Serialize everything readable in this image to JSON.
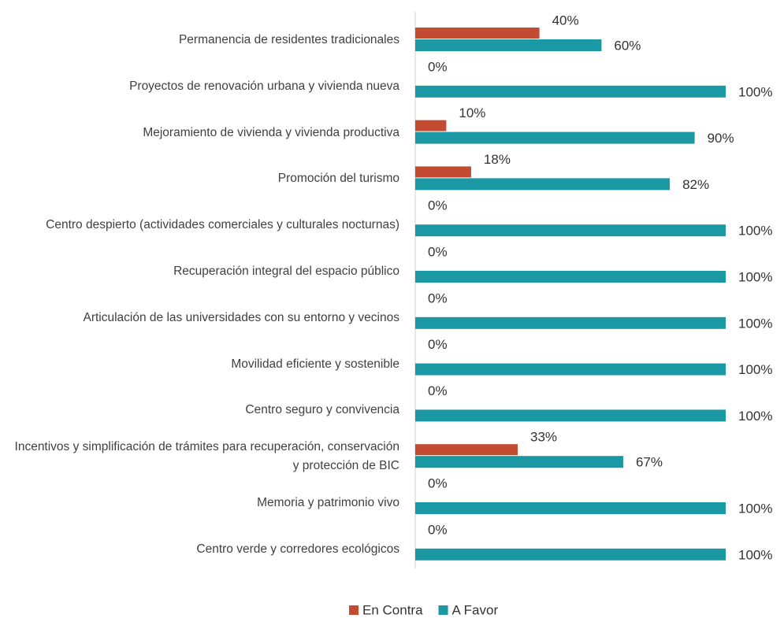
{
  "chart_data": {
    "type": "hbar",
    "categories": [
      "Permanencia de residentes tradicionales",
      "Proyectos de renovación urbana y vivienda nueva",
      "Mejoramiento de vivienda y vivienda productiva",
      "Promoción del turismo",
      "Centro despierto (actividades comerciales y culturales nocturnas)",
      "Recuperación integral del espacio público",
      "Articulación de las universidades con su entorno y vecinos",
      "Movilidad eficiente y sostenible",
      "Centro seguro y convivencia",
      "Incentivos y simplificación de trámites para recuperación, conservación y protección de BIC",
      "Memoria y patrimonio vivo",
      "Centro verde y corredores ecológicos"
    ],
    "series": [
      {
        "name": "En Contra",
        "color": "#c24b32",
        "values": [
          40,
          0,
          10,
          18,
          0,
          0,
          0,
          0,
          0,
          33,
          0,
          0
        ],
        "value_labels": [
          "40%",
          "0%",
          "10%",
          "18%",
          "0%",
          "0%",
          "0%",
          "0%",
          "0%",
          "33%",
          "0%",
          "0%"
        ]
      },
      {
        "name": "A Favor",
        "color": "#1a98a3",
        "values": [
          60,
          100,
          90,
          82,
          100,
          100,
          100,
          100,
          100,
          67,
          100,
          100
        ],
        "value_labels": [
          "60%",
          "100%",
          "90%",
          "82%",
          "100%",
          "100%",
          "100%",
          "100%",
          "100%",
          "67%",
          "100%",
          "100%"
        ]
      }
    ],
    "xlim": [
      0,
      100
    ],
    "legend": "bottom"
  }
}
